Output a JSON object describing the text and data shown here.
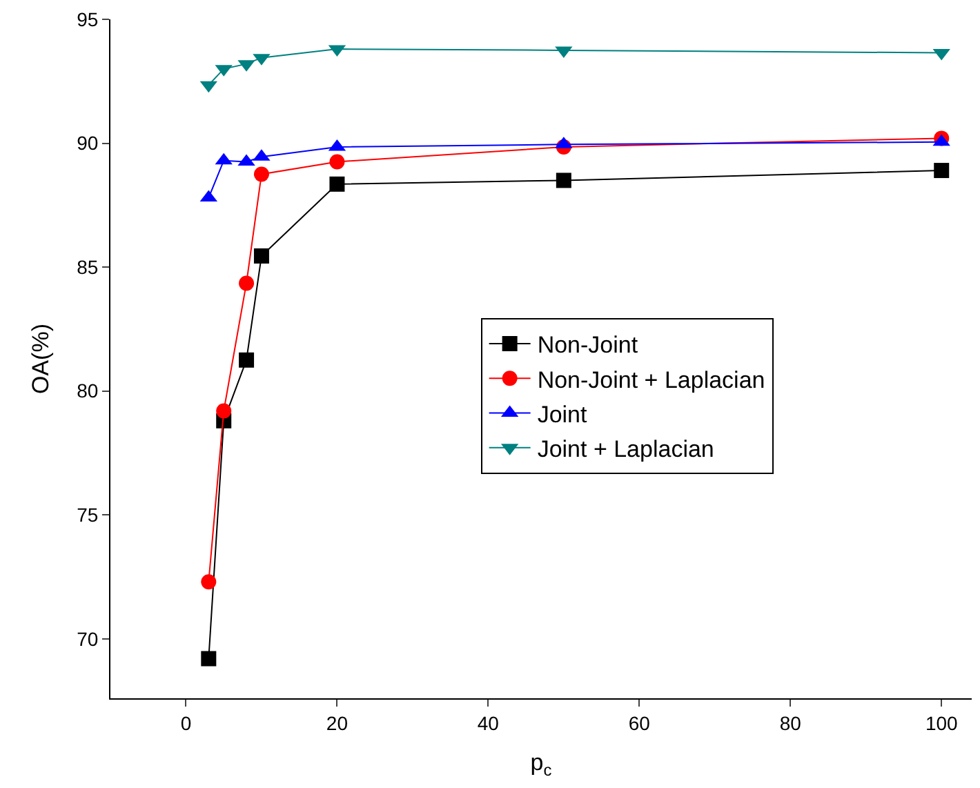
{
  "chart_data": {
    "type": "line",
    "xlabel": "p$_{c}$",
    "ylabel": "OA(%)",
    "x": [
      3,
      5,
      8,
      10,
      20,
      50,
      100
    ],
    "series": [
      {
        "name": "Non-Joint",
        "color": "#000000",
        "marker": "square",
        "values": [
          69.2,
          78.8,
          81.25,
          85.45,
          88.35,
          88.5,
          88.9
        ]
      },
      {
        "name": "Non-Joint + Laplacian",
        "color": "#ff0000",
        "marker": "circle",
        "values": [
          72.3,
          79.2,
          84.35,
          88.75,
          89.25,
          89.85,
          90.2
        ]
      },
      {
        "name": "Joint",
        "color": "#0000ff",
        "marker": "triangle",
        "values": [
          87.8,
          89.3,
          89.25,
          89.45,
          89.85,
          89.95,
          90.05
        ]
      },
      {
        "name": "Joint + Laplacian",
        "color": "#008080",
        "marker": "triangle-down",
        "values": [
          92.35,
          93.0,
          93.2,
          93.45,
          93.8,
          93.75,
          93.65
        ]
      }
    ],
    "xlim": [
      -10,
      104
    ],
    "ylim": [
      67.6,
      95
    ],
    "xticks": [
      0,
      20,
      40,
      60,
      80,
      100
    ],
    "yticks": [
      70,
      75,
      80,
      85,
      90,
      95
    ],
    "legend": "right",
    "line_style": "solid"
  }
}
